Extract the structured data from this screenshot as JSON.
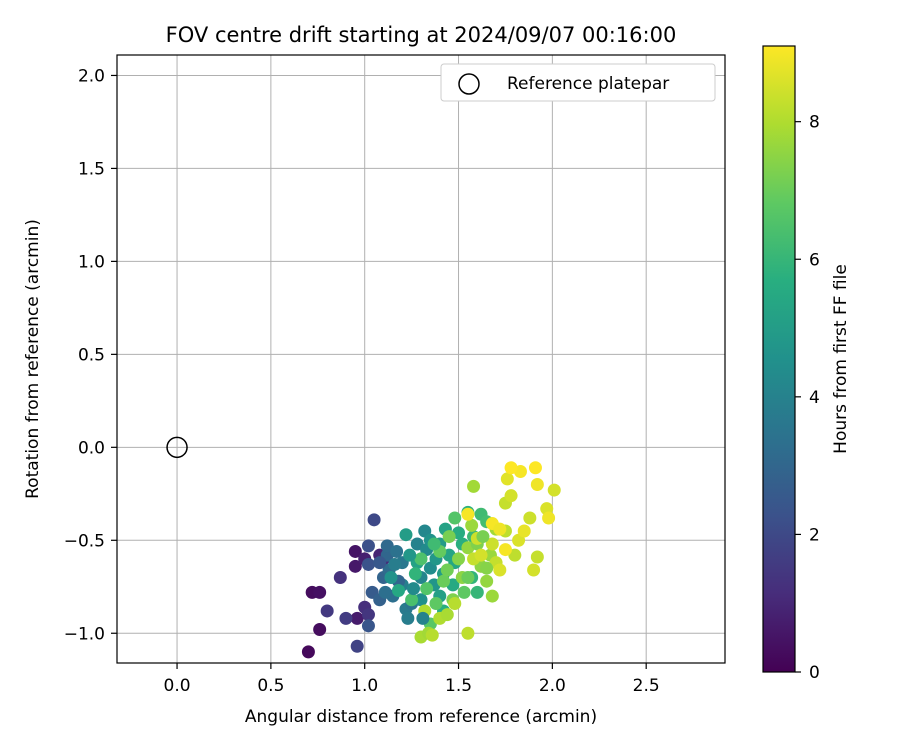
{
  "chart_data": {
    "type": "scatter",
    "title": "FOV centre drift starting at 2024/09/07 00:16:00",
    "xlabel": "Angular distance from reference (arcmin)",
    "ylabel": "Rotation from reference (arcmin)",
    "xlim": [
      -0.32,
      2.92
    ],
    "ylim": [
      -1.16,
      2.11
    ],
    "xticks": [
      "0.0",
      "0.5",
      "1.0",
      "1.5",
      "2.0",
      "2.5"
    ],
    "xtick_values": [
      0.0,
      0.5,
      1.0,
      1.5,
      2.0,
      2.5
    ],
    "yticks": [
      "2.0",
      "1.5",
      "1.0",
      "0.5",
      "0.0",
      "−0.5",
      "−1.0"
    ],
    "ytick_values": [
      2.0,
      1.5,
      1.0,
      0.5,
      0.0,
      -0.5,
      -1.0
    ],
    "grid": true,
    "legend": {
      "label": "Reference platepar",
      "placement": "top-right"
    },
    "reference_point": {
      "x": 0.0,
      "y": 0.0
    },
    "colorbar": {
      "label": "Hours from first FF file",
      "min": 0,
      "max": 9.1,
      "ticks": [
        "0",
        "2",
        "4",
        "6",
        "8"
      ],
      "tick_values": [
        0,
        2,
        4,
        6,
        8
      ],
      "colormap": "viridis"
    },
    "point_columns": [
      "x",
      "y",
      "hours"
    ],
    "points": [
      [
        0.7,
        -1.1,
        0.2
      ],
      [
        0.72,
        -0.78,
        0.3
      ],
      [
        0.76,
        -0.78,
        0.4
      ],
      [
        0.76,
        -0.98,
        0.3
      ],
      [
        0.95,
        -0.56,
        0.5
      ],
      [
        0.95,
        -0.64,
        0.6
      ],
      [
        0.96,
        -0.92,
        0.7
      ],
      [
        1.0,
        -0.6,
        0.8
      ],
      [
        1.08,
        -0.58,
        0.9
      ],
      [
        1.1,
        -0.6,
        1.0
      ],
      [
        0.87,
        -0.7,
        1.3
      ],
      [
        0.8,
        -0.88,
        1.5
      ],
      [
        0.9,
        -0.92,
        1.6
      ],
      [
        0.96,
        -1.07,
        1.8
      ],
      [
        1.0,
        -0.86,
        1.2
      ],
      [
        1.02,
        -0.9,
        1.4
      ],
      [
        1.05,
        -0.39,
        2.0
      ],
      [
        1.02,
        -0.53,
        2.2
      ],
      [
        1.02,
        -0.63,
        2.3
      ],
      [
        1.02,
        -0.96,
        2.4
      ],
      [
        1.04,
        -0.78,
        2.6
      ],
      [
        1.08,
        -0.82,
        2.8
      ],
      [
        1.1,
        -0.7,
        2.9
      ],
      [
        1.12,
        -0.58,
        3.0
      ],
      [
        1.12,
        -0.53,
        3.1
      ],
      [
        1.13,
        -0.66,
        3.2
      ],
      [
        1.15,
        -0.8,
        3.3
      ],
      [
        1.17,
        -0.56,
        3.4
      ],
      [
        1.2,
        -0.62,
        3.6
      ],
      [
        1.22,
        -0.87,
        3.7
      ],
      [
        1.23,
        -0.92,
        3.8
      ],
      [
        1.2,
        -0.74,
        3.9
      ],
      [
        1.25,
        -0.84,
        3.5
      ],
      [
        1.18,
        -0.72,
        3.0
      ],
      [
        1.28,
        -0.52,
        4.0
      ],
      [
        1.3,
        -0.7,
        4.1
      ],
      [
        1.32,
        -0.45,
        4.2
      ],
      [
        1.33,
        -0.55,
        4.3
      ],
      [
        1.35,
        -0.65,
        4.4
      ],
      [
        1.3,
        -0.82,
        4.5
      ],
      [
        1.35,
        -0.5,
        4.6
      ],
      [
        1.37,
        -0.74,
        4.7
      ],
      [
        1.38,
        -0.6,
        4.8
      ],
      [
        1.4,
        -0.52,
        4.9
      ],
      [
        1.42,
        -0.68,
        5.0
      ],
      [
        1.4,
        -0.8,
        5.1
      ],
      [
        1.43,
        -0.44,
        5.2
      ],
      [
        1.45,
        -0.58,
        5.3
      ],
      [
        1.48,
        -0.62,
        5.4
      ],
      [
        1.47,
        -0.74,
        5.5
      ],
      [
        1.5,
        -0.46,
        5.6
      ],
      [
        1.52,
        -0.52,
        5.7
      ],
      [
        1.55,
        -0.35,
        5.8
      ],
      [
        1.57,
        -0.7,
        5.9
      ],
      [
        1.6,
        -0.78,
        6.0
      ],
      [
        1.58,
        -0.48,
        6.1
      ],
      [
        1.62,
        -0.36,
        6.2
      ],
      [
        1.65,
        -0.4,
        6.3
      ],
      [
        1.22,
        -0.47,
        5.0
      ],
      [
        1.28,
        -0.62,
        5.2
      ],
      [
        1.42,
        -0.88,
        5.7
      ],
      [
        1.25,
        -0.82,
        6.4
      ],
      [
        1.3,
        -0.6,
        6.5
      ],
      [
        1.33,
        -0.76,
        6.6
      ],
      [
        1.35,
        -0.95,
        6.7
      ],
      [
        1.38,
        -0.84,
        6.8
      ],
      [
        1.4,
        -0.56,
        6.9
      ],
      [
        1.42,
        -0.72,
        7.0
      ],
      [
        1.44,
        -0.66,
        7.1
      ],
      [
        1.45,
        -0.48,
        7.2
      ],
      [
        1.47,
        -0.82,
        7.3
      ],
      [
        1.5,
        -0.6,
        7.4
      ],
      [
        1.52,
        -0.7,
        7.5
      ],
      [
        1.55,
        -0.54,
        7.6
      ],
      [
        1.57,
        -0.42,
        7.7
      ],
      [
        1.58,
        -0.21,
        7.8
      ],
      [
        1.6,
        -0.52,
        7.3
      ],
      [
        1.62,
        -0.64,
        7.5
      ],
      [
        1.65,
        -0.72,
        7.6
      ],
      [
        1.67,
        -0.58,
        7.7
      ],
      [
        1.7,
        -0.44,
        7.8
      ],
      [
        1.3,
        -1.02,
        7.9
      ],
      [
        1.32,
        -0.88,
        8.0
      ],
      [
        1.34,
        -1.0,
        7.8
      ],
      [
        1.36,
        -1.01,
        8.1
      ],
      [
        1.4,
        -0.92,
        8.0
      ],
      [
        1.44,
        -0.9,
        7.9
      ],
      [
        1.48,
        -0.84,
        8.1
      ],
      [
        1.55,
        -1.0,
        8.2
      ],
      [
        1.58,
        -0.6,
        8.3
      ],
      [
        1.6,
        -0.49,
        8.4
      ],
      [
        1.62,
        -0.58,
        8.5
      ],
      [
        1.68,
        -0.52,
        8.4
      ],
      [
        1.7,
        -0.62,
        8.3
      ],
      [
        1.72,
        -0.66,
        8.6
      ],
      [
        1.75,
        -0.45,
        8.2
      ],
      [
        1.75,
        -0.3,
        8.3
      ],
      [
        1.78,
        -0.26,
        8.5
      ],
      [
        1.8,
        -0.58,
        8.2
      ],
      [
        1.76,
        -0.17,
        8.7
      ],
      [
        1.82,
        -0.5,
        8.6
      ],
      [
        1.85,
        -0.45,
        8.8
      ],
      [
        1.88,
        -0.38,
        8.4
      ],
      [
        1.9,
        -0.66,
        8.5
      ],
      [
        1.92,
        -0.59,
        8.3
      ],
      [
        1.92,
        -0.2,
        8.9
      ],
      [
        1.97,
        -0.33,
        8.6
      ],
      [
        1.98,
        -0.38,
        8.9
      ],
      [
        2.01,
        -0.23,
        8.5
      ],
      [
        1.83,
        -0.13,
        9.0
      ],
      [
        1.78,
        -0.11,
        9.1
      ],
      [
        1.91,
        -0.11,
        9.1
      ],
      [
        1.55,
        -0.36,
        9.0
      ],
      [
        1.68,
        -0.41,
        9.0
      ],
      [
        1.72,
        -0.44,
        8.9
      ],
      [
        1.75,
        -0.55,
        9.0
      ],
      [
        1.68,
        -0.8,
        7.7
      ],
      [
        1.65,
        -0.65,
        7.4
      ],
      [
        1.63,
        -0.48,
        7.2
      ],
      [
        1.55,
        -0.7,
        7.0
      ],
      [
        1.48,
        -0.38,
        6.6
      ],
      [
        1.53,
        -0.78,
        6.8
      ],
      [
        1.37,
        -0.52,
        6.2
      ],
      [
        1.27,
        -0.68,
        5.9
      ],
      [
        1.18,
        -0.77,
        5.4
      ],
      [
        1.14,
        -0.7,
        4.6
      ],
      [
        1.26,
        -0.76,
        4.3
      ],
      [
        1.31,
        -0.92,
        4.0
      ],
      [
        1.08,
        -0.62,
        2.5
      ],
      [
        1.11,
        -0.78,
        3.3
      ],
      [
        1.16,
        -0.63,
        3.8
      ],
      [
        1.24,
        -0.58,
        4.8
      ]
    ]
  }
}
